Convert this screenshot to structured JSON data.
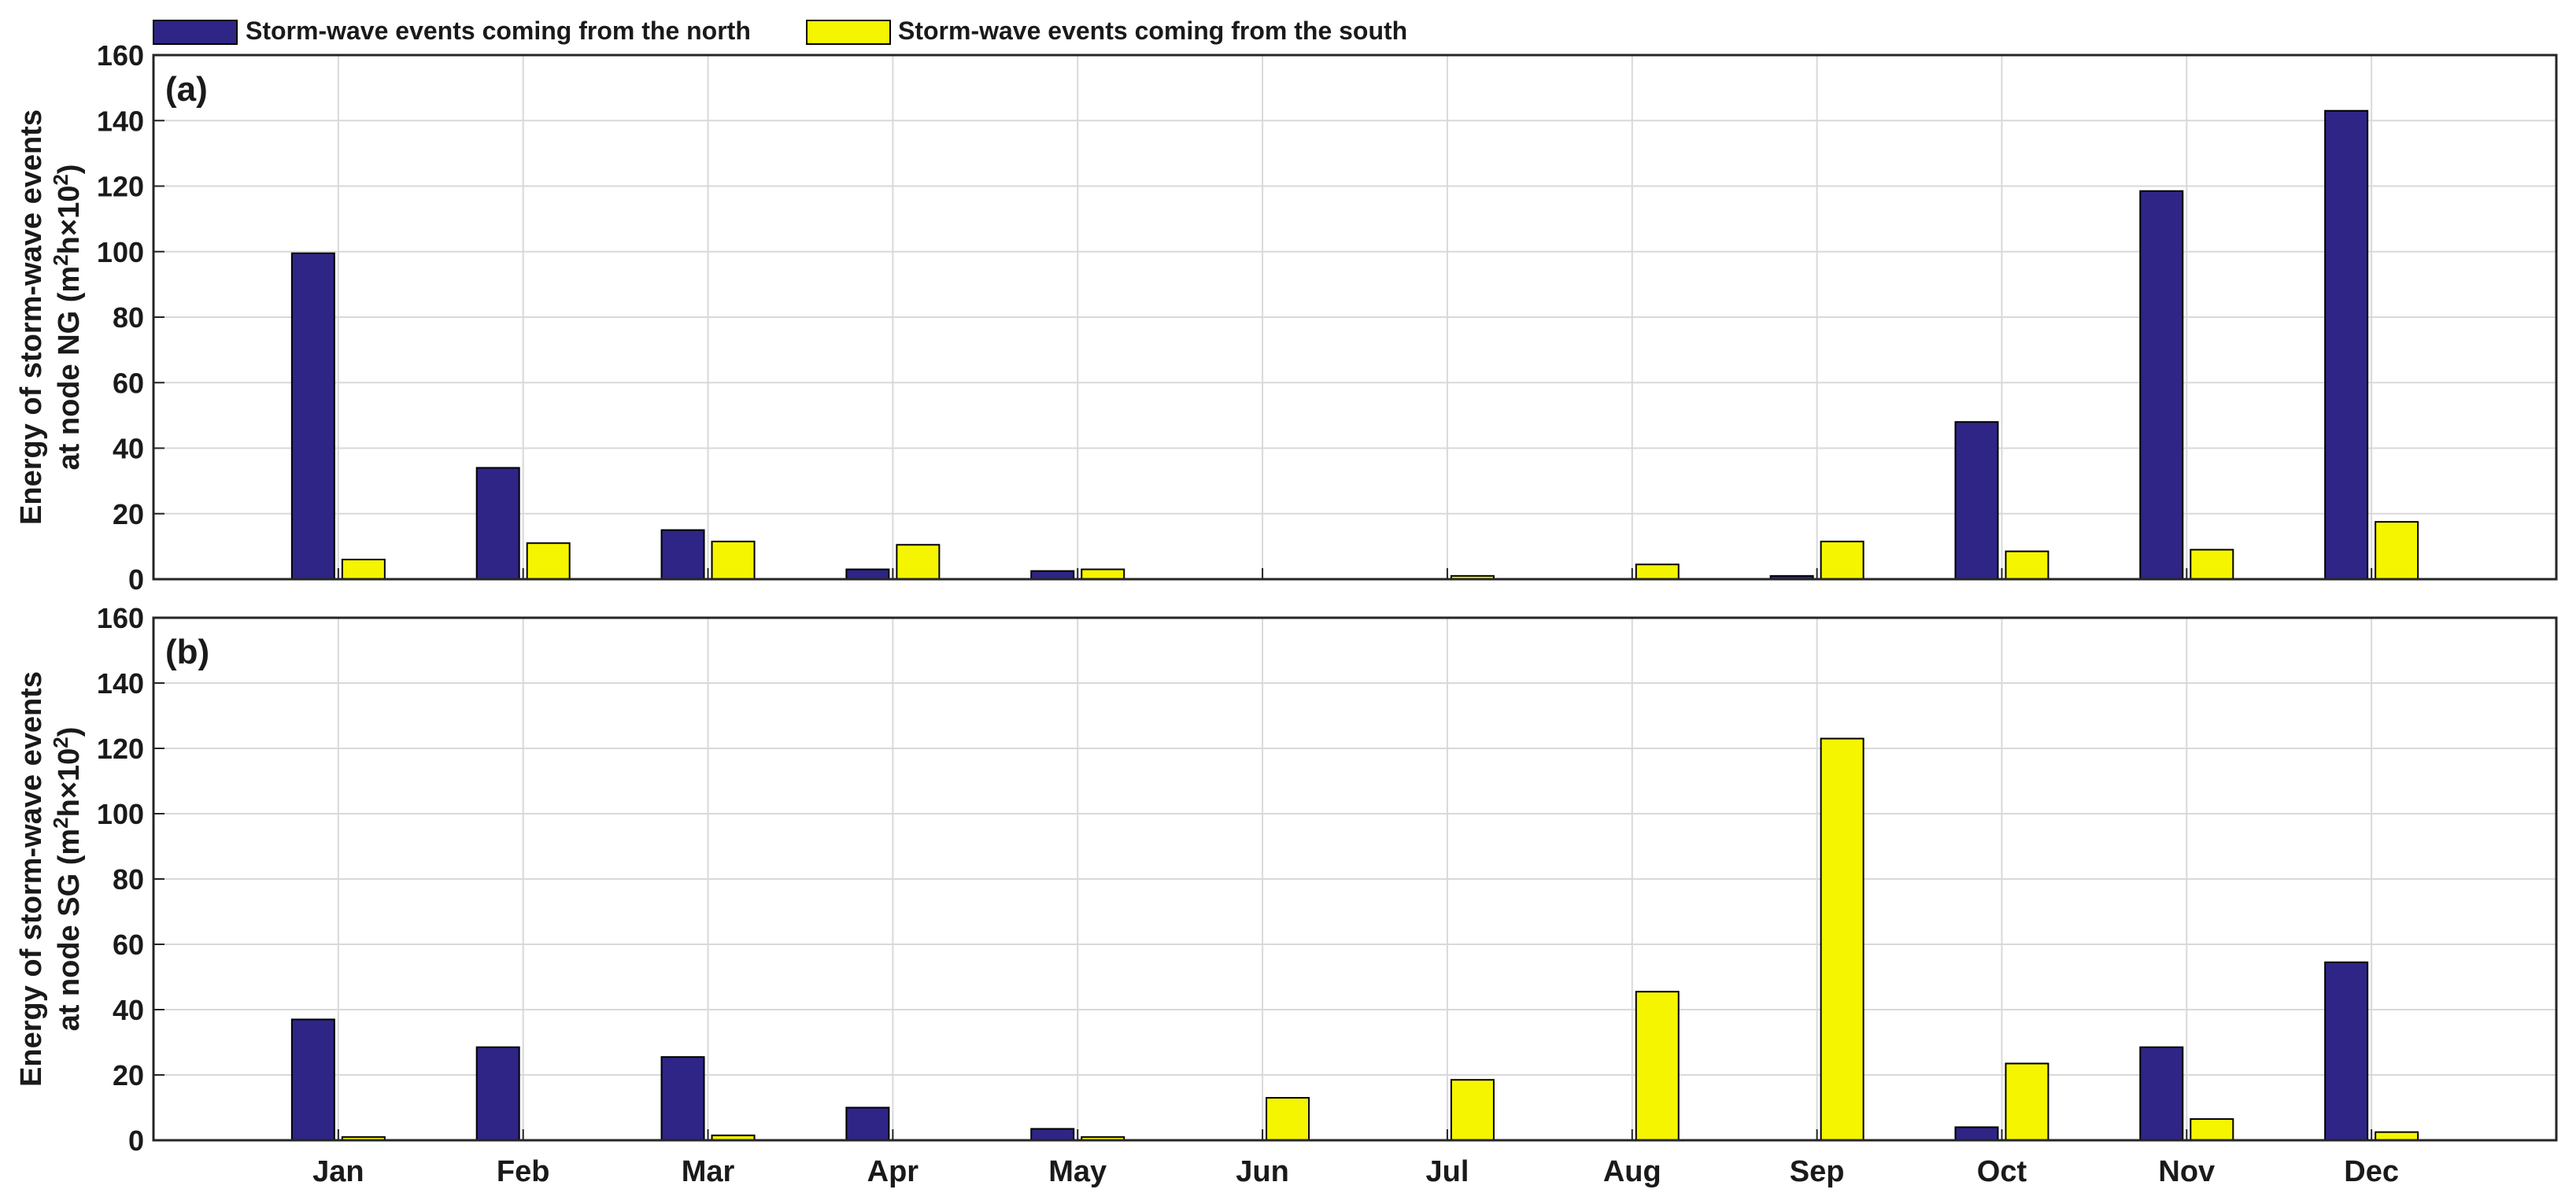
{
  "legend": {
    "placement": "top-left, above plots",
    "items": [
      {
        "label": "Storm-wave events coming from the north",
        "color": "#2e2586"
      },
      {
        "label": "Storm-wave events coming from the south",
        "color": "#f5f500"
      }
    ]
  },
  "chart_data": [
    {
      "type": "bar",
      "panel_label": "(a)",
      "ylabel_line1": "Energy of storm-wave events",
      "ylabel_line2_prefix": "at node NG (m",
      "ylabel_line2_suffix": "h×10",
      "ylabel_sup1": "2",
      "ylabel_sup2": "2",
      "ylabel_close": ")",
      "ylim": [
        0,
        160
      ],
      "yticks": [
        "0",
        "20",
        "40",
        "60",
        "80",
        "100",
        "120",
        "140",
        "160"
      ],
      "grid": true,
      "categories": [
        "Jan",
        "Feb",
        "Mar",
        "Apr",
        "May",
        "Jun",
        "Jul",
        "Aug",
        "Sep",
        "Oct",
        "Nov",
        "Dec"
      ],
      "series": [
        {
          "name": "Storm-wave events coming from the north",
          "color": "#2e2586",
          "values": [
            99.5,
            34,
            15,
            3,
            2.5,
            0,
            0,
            0,
            1,
            48,
            118.5,
            143
          ]
        },
        {
          "name": "Storm-wave events coming from the south",
          "color": "#f5f500",
          "values": [
            6,
            11,
            11.5,
            10.5,
            3,
            0,
            1,
            4.5,
            11.5,
            8.5,
            9,
            17.5
          ]
        }
      ]
    },
    {
      "type": "bar",
      "panel_label": "(b)",
      "ylabel_line1": "Energy of storm-wave events",
      "ylabel_line2_prefix": "at node SG (m",
      "ylabel_line2_suffix": "h×10",
      "ylabel_sup1": "2",
      "ylabel_sup2": "2",
      "ylabel_close": ")",
      "ylim": [
        0,
        160
      ],
      "yticks": [
        "0",
        "20",
        "40",
        "60",
        "80",
        "100",
        "120",
        "140",
        "160"
      ],
      "grid": true,
      "categories": [
        "Jan",
        "Feb",
        "Mar",
        "Apr",
        "May",
        "Jun",
        "Jul",
        "Aug",
        "Sep",
        "Oct",
        "Nov",
        "Dec"
      ],
      "series": [
        {
          "name": "Storm-wave events coming from the north",
          "color": "#2e2586",
          "values": [
            37,
            28.5,
            25.5,
            10,
            3.5,
            0,
            0,
            0,
            0,
            4,
            28.5,
            54.5
          ]
        },
        {
          "name": "Storm-wave events coming from the south",
          "color": "#f5f500",
          "values": [
            1,
            0,
            1.5,
            0,
            1,
            13,
            18.5,
            45.5,
            123,
            23.5,
            6.5,
            2.5
          ]
        }
      ]
    }
  ]
}
